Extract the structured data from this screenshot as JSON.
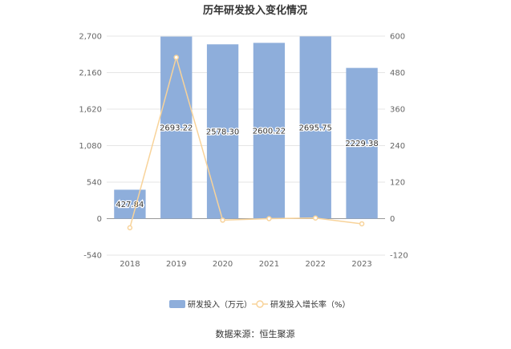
{
  "chart_data": {
    "type": "bar",
    "title": "历年研发投入变化情况",
    "categories": [
      "2018",
      "2019",
      "2020",
      "2021",
      "2022",
      "2023"
    ],
    "series": [
      {
        "name": "研发投入（万元）",
        "type": "bar",
        "axis": "left",
        "color": "#8eaedb",
        "values": [
          427.84,
          2693.22,
          2578.3,
          2600.22,
          2695.75,
          2229.38
        ],
        "labels": [
          "427.84",
          "2693.22",
          "2578.30",
          "2600.22",
          "2695.75",
          "2229.38"
        ]
      },
      {
        "name": "研发投入增长率（%）",
        "type": "line",
        "axis": "right",
        "color": "#f8d39a",
        "values": [
          -30,
          530,
          -5,
          0,
          2,
          -17
        ]
      }
    ],
    "y_left": {
      "min": -540,
      "max": 2700,
      "ticks": [
        -540,
        0,
        540,
        1080,
        1620,
        2160,
        2700
      ],
      "tick_labels": [
        "-540",
        "0",
        "540",
        "1,080",
        "1,620",
        "2,160",
        "2,700"
      ]
    },
    "y_right": {
      "min": -120,
      "max": 600,
      "ticks": [
        -120,
        0,
        120,
        240,
        360,
        480,
        600
      ],
      "tick_labels": [
        "-120",
        "0",
        "120",
        "240",
        "360",
        "480",
        "600"
      ]
    },
    "grid": true,
    "legend_position": "bottom"
  },
  "source": "数据来源：恒生聚源"
}
